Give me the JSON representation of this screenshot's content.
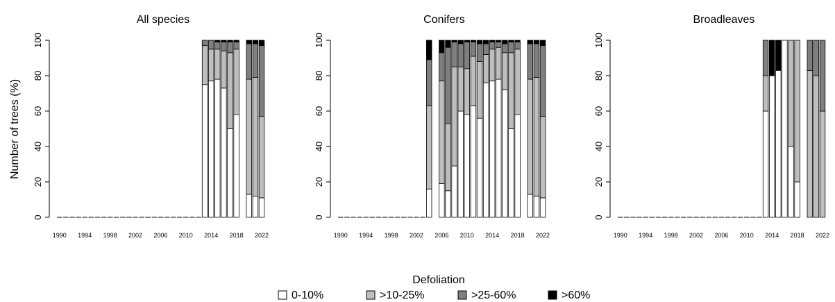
{
  "colors": {
    "0-10%": "#ffffff",
    ">10-25%": "#bebebe",
    ">25-60%": "#7f7f7f",
    ">60%": "#000000"
  },
  "chart_data": {
    "type": "bar",
    "stacked": true,
    "ylabel": "Number of trees (%)",
    "ylim": [
      0,
      100
    ],
    "yticks": [
      "0",
      "20",
      "40",
      "60",
      "80",
      "100"
    ],
    "x_range": [
      1990,
      2023
    ],
    "xticks": [
      "1990",
      "1994",
      "1998",
      "2002",
      "2006",
      "2010",
      "2014",
      "2018",
      "2022"
    ],
    "legend": {
      "title": "Defoliation",
      "placement": "bottom-center",
      "entries": [
        "0-10%",
        ">10-25%",
        ">25-60%",
        ">60%"
      ]
    },
    "panels": [
      {
        "title": "All species",
        "years": [
          1990,
          1991,
          1992,
          1993,
          1994,
          1995,
          1996,
          1997,
          1998,
          1999,
          2000,
          2001,
          2002,
          2003,
          2004,
          2005,
          2006,
          2007,
          2008,
          2009,
          2010,
          2011,
          2012,
          2013,
          2014,
          2015,
          2016,
          2017,
          2018,
          2019,
          2020,
          2021,
          2022,
          2023
        ],
        "series": [
          {
            "name": "0-10%",
            "values": [
              0,
              0,
              0,
              0,
              0,
              0,
              0,
              0,
              0,
              0,
              0,
              0,
              0,
              0,
              0,
              0,
              0,
              0,
              0,
              0,
              0,
              0,
              0,
              75,
              77,
              78,
              73,
              50,
              58,
              null,
              13,
              12,
              11,
              null
            ]
          },
          {
            "name": ">10-25%",
            "values": [
              0,
              0,
              0,
              0,
              0,
              0,
              0,
              0,
              0,
              0,
              0,
              0,
              0,
              0,
              0,
              0,
              0,
              0,
              0,
              0,
              0,
              0,
              0,
              22,
              18,
              17,
              21,
              43,
              37,
              null,
              65,
              67,
              46,
              null
            ]
          },
          {
            "name": ">25-60%",
            "values": [
              0,
              0,
              0,
              0,
              0,
              0,
              0,
              0,
              0,
              0,
              0,
              0,
              0,
              0,
              0,
              0,
              0,
              0,
              0,
              0,
              0,
              0,
              0,
              3,
              5,
              4,
              5,
              6,
              4,
              null,
              20,
              19,
              40,
              null
            ]
          },
          {
            "name": ">60%",
            "values": [
              0,
              0,
              0,
              0,
              0,
              0,
              0,
              0,
              0,
              0,
              0,
              0,
              0,
              0,
              0,
              0,
              0,
              0,
              0,
              0,
              0,
              0,
              0,
              0,
              0,
              1,
              1,
              1,
              1,
              null,
              2,
              2,
              3,
              null
            ]
          }
        ]
      },
      {
        "title": "Conifers",
        "years": [
          1990,
          1991,
          1992,
          1993,
          1994,
          1995,
          1996,
          1997,
          1998,
          1999,
          2000,
          2001,
          2002,
          2003,
          2004,
          2005,
          2006,
          2007,
          2008,
          2009,
          2010,
          2011,
          2012,
          2013,
          2014,
          2015,
          2016,
          2017,
          2018,
          2019,
          2020,
          2021,
          2022,
          2023
        ],
        "series": [
          {
            "name": "0-10%",
            "values": [
              0,
              0,
              0,
              0,
              0,
              0,
              0,
              0,
              0,
              0,
              0,
              0,
              0,
              0,
              16,
              null,
              19,
              15,
              29,
              60,
              58,
              63,
              56,
              76,
              77,
              78,
              72,
              50,
              58,
              null,
              13,
              12,
              11,
              null
            ]
          },
          {
            "name": ">10-25%",
            "values": [
              0,
              0,
              0,
              0,
              0,
              0,
              0,
              0,
              0,
              0,
              0,
              0,
              0,
              0,
              47,
              null,
              58,
              38,
              56,
              25,
              26,
              28,
              32,
              16,
              18,
              18,
              21,
              43,
              37,
              null,
              65,
              67,
              46,
              null
            ]
          },
          {
            "name": ">25-60%",
            "values": [
              0,
              0,
              0,
              0,
              0,
              0,
              0,
              0,
              0,
              0,
              0,
              0,
              0,
              0,
              26,
              null,
              16,
              43,
              14,
              13,
              15,
              8,
              10,
              6,
              4,
              3,
              5,
              6,
              4,
              null,
              20,
              19,
              40,
              null
            ]
          },
          {
            "name": ">60%",
            "values": [
              0,
              0,
              0,
              0,
              0,
              0,
              0,
              0,
              0,
              0,
              0,
              0,
              0,
              0,
              11,
              null,
              7,
              4,
              1,
              2,
              1,
              1,
              2,
              2,
              1,
              1,
              2,
              1,
              1,
              null,
              2,
              2,
              3,
              null
            ]
          }
        ]
      },
      {
        "title": "Broadleaves",
        "years": [
          1990,
          1991,
          1992,
          1993,
          1994,
          1995,
          1996,
          1997,
          1998,
          1999,
          2000,
          2001,
          2002,
          2003,
          2004,
          2005,
          2006,
          2007,
          2008,
          2009,
          2010,
          2011,
          2012,
          2013,
          2014,
          2015,
          2016,
          2017,
          2018,
          2019,
          2020,
          2021,
          2022,
          2023
        ],
        "series": [
          {
            "name": "0-10%",
            "values": [
              0,
              0,
              0,
              0,
              0,
              0,
              0,
              0,
              0,
              0,
              0,
              0,
              0,
              0,
              0,
              0,
              0,
              0,
              0,
              0,
              0,
              0,
              0,
              60,
              80,
              83,
              100,
              40,
              20,
              null,
              0,
              0,
              0,
              null
            ]
          },
          {
            "name": ">10-25%",
            "values": [
              0,
              0,
              0,
              0,
              0,
              0,
              0,
              0,
              0,
              0,
              0,
              0,
              0,
              0,
              0,
              0,
              0,
              0,
              0,
              0,
              0,
              0,
              0,
              20,
              0,
              0,
              0,
              60,
              80,
              null,
              83,
              80,
              60,
              null
            ]
          },
          {
            "name": ">25-60%",
            "values": [
              0,
              0,
              0,
              0,
              0,
              0,
              0,
              0,
              0,
              0,
              0,
              0,
              0,
              0,
              0,
              0,
              0,
              0,
              0,
              0,
              0,
              0,
              0,
              20,
              0,
              0,
              0,
              0,
              0,
              null,
              17,
              20,
              40,
              null
            ]
          },
          {
            "name": ">60%",
            "values": [
              0,
              0,
              0,
              0,
              0,
              0,
              0,
              0,
              0,
              0,
              0,
              0,
              0,
              0,
              0,
              0,
              0,
              0,
              0,
              0,
              0,
              0,
              0,
              0,
              20,
              17,
              0,
              0,
              0,
              null,
              0,
              0,
              0,
              null
            ]
          }
        ]
      }
    ]
  }
}
